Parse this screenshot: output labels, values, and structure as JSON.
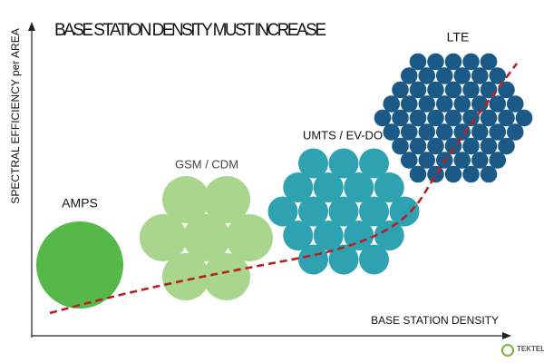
{
  "header": {
    "title": "BASE STATION DENSITY MUST INCREASE"
  },
  "axes": {
    "y_label": "SPECTRAL EFFICIENCY per AREA",
    "x_label": "BASE STATION DENSITY"
  },
  "technologies": [
    {
      "label": "AMPS"
    },
    {
      "label": "GSM / CDM"
    },
    {
      "label": "UMTS / EV-DO"
    },
    {
      "label": "LTE"
    }
  ],
  "logo": {
    "text": "TEKTELIC"
  }
}
